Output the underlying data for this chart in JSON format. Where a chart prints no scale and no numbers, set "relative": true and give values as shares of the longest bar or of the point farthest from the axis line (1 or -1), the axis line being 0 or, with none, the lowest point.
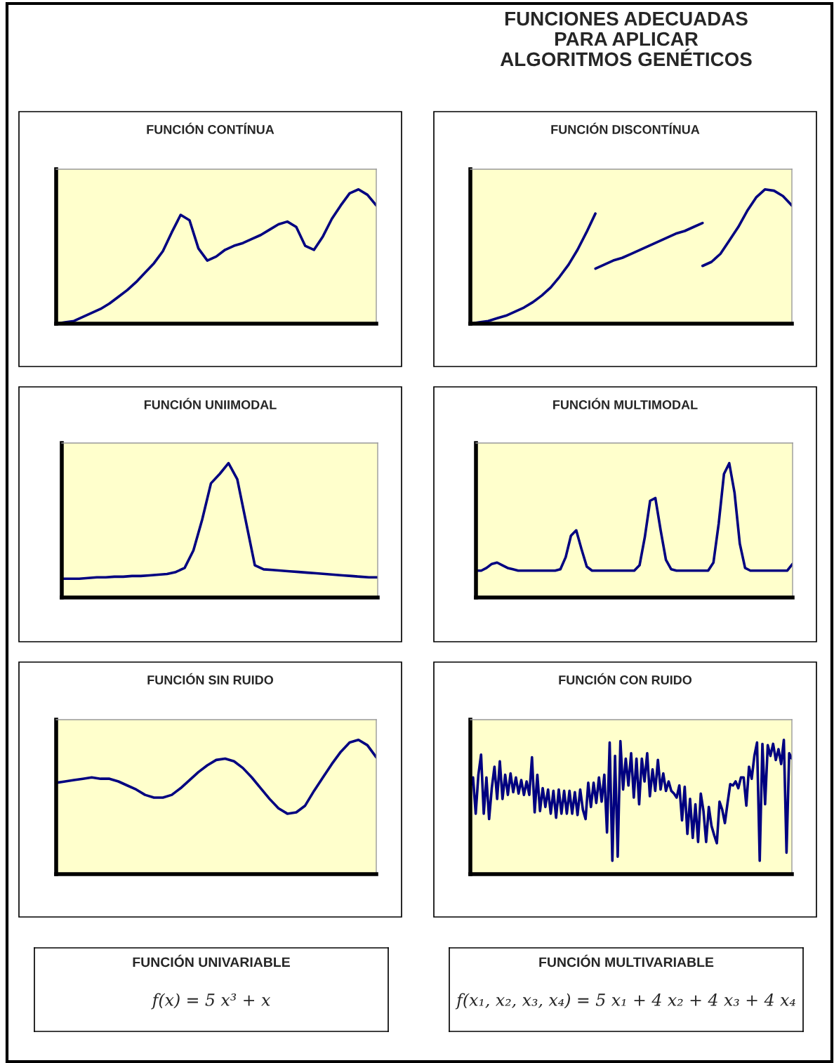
{
  "chart_data": [
    {
      "type": "other",
      "title": "FUNCIONES ADECUADAS\nPARA APLICAR\nALGORITMOS GENÉTICOS"
    },
    {
      "type": "line",
      "title": "FUNCIÓN CONTÍNUA",
      "relative": true,
      "categories": [
        null,
        null,
        null,
        null,
        null,
        null,
        null,
        null,
        null,
        null,
        null,
        null,
        null,
        null,
        null,
        null,
        null,
        null,
        null,
        null,
        null,
        null,
        null,
        null,
        null,
        null,
        null,
        null,
        null,
        null,
        null,
        null,
        null,
        null,
        null,
        null,
        null
      ],
      "series": [
        {
          "color": "#000080",
          "values": [
            0,
            0.01,
            0.02,
            0.05,
            0.08,
            0.11,
            0.15,
            0.2,
            0.25,
            0.31,
            0.38,
            0.45,
            0.54,
            0.68,
            0.81,
            0.77,
            0.56,
            0.47,
            0.5,
            0.55,
            0.58,
            0.6,
            0.63,
            0.66,
            0.7,
            0.74,
            0.76,
            0.72,
            0.58,
            0.55,
            0.65,
            0.78,
            0.88,
            0.97,
            1.0,
            0.96,
            0.88
          ]
        }
      ]
    },
    {
      "type": "line",
      "title": "FUNCIÓN DISCONTÍNUA",
      "relative": true,
      "categories": [
        null,
        null,
        null,
        null,
        null,
        null,
        null,
        null,
        null,
        null,
        null,
        null,
        null,
        null,
        null,
        null,
        null,
        null,
        null,
        null,
        null,
        null,
        null,
        null,
        null,
        null,
        null,
        null,
        null,
        null,
        null,
        null,
        null,
        null,
        null,
        null,
        null
      ],
      "series": [
        {
          "color": "#000080",
          "values": [
            0,
            0.01,
            0.02,
            0.04,
            0.06,
            0.09,
            0.12,
            0.16,
            0.21,
            0.27,
            0.35,
            0.44,
            0.55,
            0.68,
            0.82,
            null,
            null,
            null,
            null,
            null,
            null,
            null,
            null,
            null,
            null,
            null,
            null,
            null,
            null,
            null,
            null,
            null,
            null,
            null,
            null,
            null,
            null
          ]
        },
        {
          "color": "#000080",
          "values": [
            null,
            null,
            null,
            null,
            null,
            null,
            null,
            null,
            null,
            null,
            null,
            null,
            null,
            null,
            0.41,
            0.44,
            0.47,
            0.49,
            0.52,
            0.55,
            0.58,
            0.61,
            0.64,
            0.67,
            0.69,
            0.72,
            0.75,
            null,
            null,
            null,
            null,
            null,
            null,
            null,
            null,
            null,
            null
          ]
        },
        {
          "color": "#000080",
          "values": [
            null,
            null,
            null,
            null,
            null,
            null,
            null,
            null,
            null,
            null,
            null,
            null,
            null,
            null,
            null,
            null,
            null,
            null,
            null,
            null,
            null,
            null,
            null,
            null,
            null,
            null,
            0.43,
            0.46,
            0.52,
            0.62,
            0.72,
            0.84,
            0.94,
            1.0,
            0.99,
            0.95,
            0.88
          ]
        }
      ]
    },
    {
      "type": "line",
      "title": "FUNCIÓN UNIIMODAL",
      "relative": true,
      "categories": [
        null,
        null,
        null,
        null,
        null,
        null,
        null,
        null,
        null,
        null,
        null,
        null,
        null,
        null,
        null,
        null,
        null,
        null,
        null,
        null,
        null,
        null,
        null,
        null,
        null,
        null,
        null,
        null,
        null,
        null,
        null,
        null,
        null,
        null,
        null,
        null,
        null
      ],
      "series": [
        {
          "color": "#000080",
          "values": [
            0.14,
            0.14,
            0.14,
            0.145,
            0.15,
            0.15,
            0.155,
            0.155,
            0.16,
            0.16,
            0.165,
            0.17,
            0.175,
            0.19,
            0.22,
            0.35,
            0.58,
            0.85,
            0.92,
            1.0,
            0.88,
            0.56,
            0.24,
            0.21,
            0.205,
            0.2,
            0.195,
            0.19,
            0.185,
            0.18,
            0.175,
            0.17,
            0.165,
            0.16,
            0.155,
            0.15,
            0.15
          ]
        }
      ]
    },
    {
      "type": "line",
      "title": "FUNCIÓN MULTIMODAL",
      "relative": true,
      "categories": [
        null,
        null,
        null,
        null,
        null,
        null,
        null,
        null,
        null,
        null,
        null,
        null,
        null,
        null,
        null,
        null,
        null,
        null,
        null,
        null,
        null,
        null,
        null,
        null,
        null,
        null,
        null,
        null,
        null,
        null,
        null,
        null,
        null,
        null,
        null,
        null,
        null,
        null,
        null,
        null,
        null,
        null,
        null,
        null,
        null,
        null,
        null,
        null,
        null,
        null,
        null,
        null,
        null,
        null,
        null,
        null,
        null,
        null,
        null,
        null,
        null
      ],
      "series": [
        {
          "color": "#000080",
          "values": [
            0.2,
            0.2,
            0.22,
            0.25,
            0.26,
            0.24,
            0.22,
            0.21,
            0.2,
            0.2,
            0.2,
            0.2,
            0.2,
            0.2,
            0.2,
            0.2,
            0.21,
            0.3,
            0.46,
            0.5,
            0.36,
            0.23,
            0.2,
            0.2,
            0.2,
            0.2,
            0.2,
            0.2,
            0.2,
            0.2,
            0.2,
            0.24,
            0.45,
            0.72,
            0.74,
            0.5,
            0.28,
            0.21,
            0.2,
            0.2,
            0.2,
            0.2,
            0.2,
            0.2,
            0.2,
            0.26,
            0.55,
            0.92,
            1.0,
            0.78,
            0.4,
            0.22,
            0.2,
            0.2,
            0.2,
            0.2,
            0.2,
            0.2,
            0.2,
            0.2,
            0.25
          ]
        }
      ]
    },
    {
      "type": "line",
      "title": "FUNCIÓN SIN RUIDO",
      "relative": true,
      "categories": [
        null,
        null,
        null,
        null,
        null,
        null,
        null,
        null,
        null,
        null,
        null,
        null,
        null,
        null,
        null,
        null,
        null,
        null,
        null,
        null,
        null,
        null,
        null,
        null,
        null,
        null,
        null,
        null,
        null,
        null,
        null,
        null,
        null,
        null,
        null,
        null,
        null
      ],
      "series": [
        {
          "color": "#000080",
          "values": [
            0.68,
            0.69,
            0.7,
            0.71,
            0.72,
            0.71,
            0.71,
            0.69,
            0.66,
            0.63,
            0.59,
            0.57,
            0.57,
            0.59,
            0.64,
            0.7,
            0.76,
            0.81,
            0.85,
            0.86,
            0.84,
            0.79,
            0.72,
            0.64,
            0.56,
            0.49,
            0.45,
            0.46,
            0.51,
            0.62,
            0.72,
            0.82,
            0.91,
            0.98,
            1.0,
            0.96,
            0.87
          ]
        }
      ]
    },
    {
      "type": "line",
      "title": "FUNCIÓN CON RUIDO",
      "relative": true,
      "categories": [
        null,
        null,
        null,
        null,
        null,
        null,
        null,
        null,
        null,
        null,
        null,
        null,
        null,
        null,
        null,
        null,
        null,
        null,
        null,
        null,
        null,
        null,
        null,
        null,
        null,
        null,
        null,
        null,
        null,
        null,
        null,
        null,
        null,
        null,
        null,
        null,
        null,
        null,
        null,
        null,
        null,
        null,
        null,
        null,
        null,
        null,
        null,
        null,
        null,
        null,
        null,
        null,
        null,
        null,
        null,
        null,
        null,
        null,
        null,
        null,
        null,
        null,
        null,
        null,
        null,
        null,
        null,
        null,
        null,
        null,
        null,
        null,
        null,
        null,
        null,
        null,
        null,
        null,
        null,
        null,
        null,
        null,
        null,
        null,
        null,
        null,
        null,
        null,
        null,
        null,
        null,
        null,
        null,
        null,
        null,
        null,
        null,
        null,
        null,
        null,
        null,
        null,
        null,
        null,
        null,
        null,
        null,
        null,
        null,
        null,
        null,
        null,
        null,
        null,
        null,
        null,
        null,
        null,
        null,
        null,
        null
      ],
      "series": [
        {
          "color": "#000080",
          "values": [
            0.65,
            0.72,
            0.45,
            0.74,
            0.89,
            0.45,
            0.72,
            0.41,
            0.64,
            0.8,
            0.56,
            0.84,
            0.56,
            0.74,
            0.59,
            0.75,
            0.61,
            0.72,
            0.6,
            0.7,
            0.59,
            0.69,
            0.59,
            0.87,
            0.46,
            0.74,
            0.47,
            0.64,
            0.5,
            0.63,
            0.45,
            0.62,
            0.42,
            0.63,
            0.45,
            0.62,
            0.45,
            0.62,
            0.45,
            0.61,
            0.44,
            0.63,
            0.48,
            0.41,
            0.68,
            0.5,
            0.68,
            0.53,
            0.72,
            0.54,
            0.74,
            0.31,
            0.98,
            0.1,
            0.88,
            0.13,
            0.99,
            0.63,
            0.86,
            0.66,
            0.9,
            0.57,
            0.86,
            0.52,
            0.86,
            0.69,
            0.9,
            0.58,
            0.78,
            0.62,
            0.85,
            0.63,
            0.75,
            0.62,
            0.69,
            0.62,
            0.6,
            0.57,
            0.66,
            0.4,
            0.65,
            0.3,
            0.56,
            0.27,
            0.52,
            0.24,
            0.6,
            0.47,
            0.24,
            0.5,
            0.36,
            0.29,
            0.23,
            0.54,
            0.48,
            0.38,
            0.53,
            0.67,
            0.66,
            0.69,
            0.64,
            0.72,
            0.72,
            0.51,
            0.8,
            0.71,
            0.88,
            0.98,
            0.1,
            0.97,
            0.52,
            0.96,
            0.88,
            0.97,
            0.85,
            0.93,
            0.82,
            1.0,
            0.16,
            0.9,
            0.86
          ]
        }
      ]
    },
    {
      "type": "other",
      "title": "FUNCIÓN UNIVARIABLE",
      "annotations": [
        "f(x) = 5 x³ + x"
      ]
    },
    {
      "type": "other",
      "title": "FUNCIÓN MULTIVARIABLE",
      "annotations": [
        "f(x₁, x₂, x₃, x₄) = 5 x₁ + 4 x₂ + 4 x₃ + 4 x₄"
      ]
    }
  ]
}
